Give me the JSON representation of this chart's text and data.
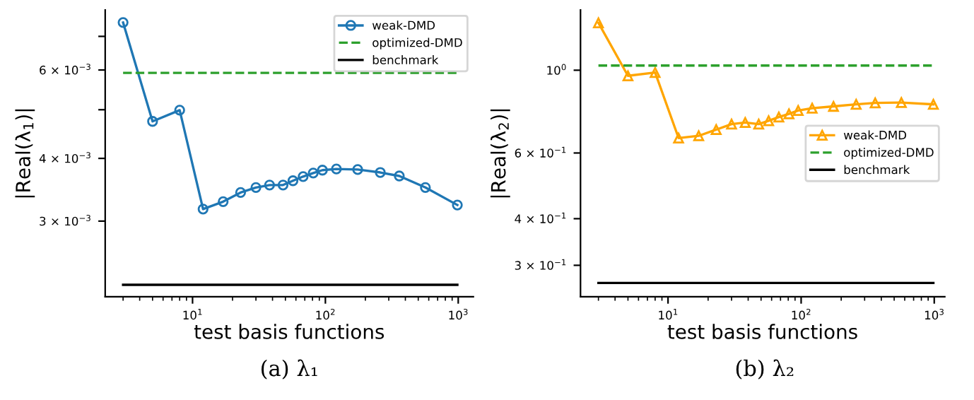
{
  "chart_data": [
    {
      "type": "line",
      "xlabel": "test basis functions",
      "ylabel": "|Real(λ$_{1}$)|",
      "log": "xy",
      "legend": "top right",
      "grid": false,
      "annotations": [
        "(a) λ₁"
      ],
      "xlim": [
        2.2,
        1300
      ],
      "xticks": [
        {
          "value": 10,
          "label": "10$^{1}$"
        },
        {
          "value": 100,
          "label": "10$^{2}$"
        },
        {
          "value": 1000,
          "label": "10$^{3}$"
        }
      ],
      "ylim": [
        0.00212,
        0.0079
      ],
      "yticks": [
        {
          "value": 0.003,
          "label": "3 × 10$^{−3}$"
        },
        {
          "value": 0.004,
          "label": "4 × 10$^{−3}$"
        },
        {
          "value": 0.005,
          "label": null
        },
        {
          "value": 0.006,
          "label": "6 × 10$^{−3}$"
        },
        {
          "value": 0.007,
          "label": null
        }
      ],
      "series": [
        {
          "name": "weak-DMD",
          "color": "#1f77b4",
          "marker": "circle",
          "line_style": "solid",
          "x": [
            3,
            5,
            8,
            12,
            17,
            23,
            30,
            38,
            48,
            57,
            68,
            81,
            95,
            121,
            175,
            259,
            360,
            566,
            985
          ],
          "values": [
            0.00746,
            0.00474,
            0.00499,
            0.00317,
            0.00328,
            0.00342,
            0.0035,
            0.00354,
            0.00354,
            0.00361,
            0.00368,
            0.00374,
            0.00379,
            0.00381,
            0.0038,
            0.00375,
            0.00369,
            0.0035,
            0.00323
          ]
        },
        {
          "name": "optimized-DMD",
          "color": "#2ca02c",
          "marker": "none",
          "line_style": "dashed",
          "x": [
            3,
            985
          ],
          "values": [
            0.00592,
            0.00592
          ]
        },
        {
          "name": "benchmark",
          "color": "#000000",
          "marker": "none",
          "line_style": "solid",
          "x": [
            3,
            985
          ],
          "values": [
            0.00224,
            0.00224
          ]
        }
      ]
    },
    {
      "type": "line",
      "xlabel": "test basis functions",
      "ylabel": "|Real(λ$_{2}$)|",
      "log": "xy",
      "legend": "right",
      "grid": false,
      "annotations": [
        "(b) λ₂"
      ],
      "xlim": [
        2.2,
        1200
      ],
      "xticks": [
        {
          "value": 10,
          "label": "10$^{1}$"
        },
        {
          "value": 100,
          "label": "10$^{2}$"
        },
        {
          "value": 1000,
          "label": "10$^{3}$"
        }
      ],
      "ylim": [
        0.247,
        1.45
      ],
      "yticks": [
        {
          "value": 0.3,
          "label": "3 × 10$^{−1}$"
        },
        {
          "value": 0.4,
          "label": "4 × 10$^{−1}$"
        },
        {
          "value": 0.6,
          "label": "6 × 10$^{−1}$"
        },
        {
          "value": 1,
          "label": "10$^{0}$"
        }
      ],
      "series": [
        {
          "name": "weak-DMD",
          "color": "#ffa500",
          "marker": "triangle",
          "line_style": "solid",
          "x": [
            3,
            5,
            8,
            12,
            17,
            23,
            30,
            38,
            48,
            57,
            68,
            81,
            95,
            121,
            175,
            259,
            360,
            566,
            985
          ],
          "values": [
            1.339,
            0.966,
            0.986,
            0.658,
            0.667,
            0.693,
            0.717,
            0.724,
            0.717,
            0.732,
            0.749,
            0.764,
            0.78,
            0.791,
            0.8,
            0.81,
            0.817,
            0.819,
            0.81
          ]
        },
        {
          "name": "optimized-DMD",
          "color": "#2ca02c",
          "marker": "none",
          "line_style": "dashed",
          "x": [
            3,
            985
          ],
          "values": [
            1.029,
            1.029
          ]
        },
        {
          "name": "benchmark",
          "color": "#000000",
          "marker": "none",
          "line_style": "solid",
          "x": [
            3,
            985
          ],
          "values": [
            0.269,
            0.269
          ]
        }
      ]
    }
  ]
}
